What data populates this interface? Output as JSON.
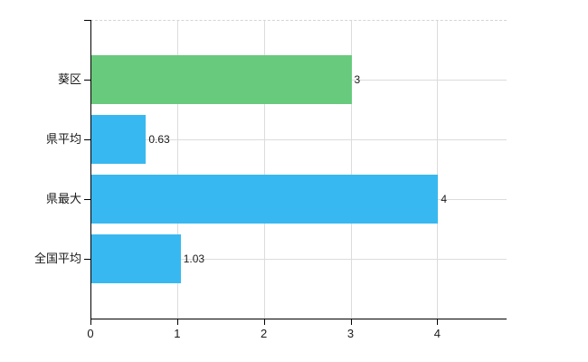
{
  "chart": {
    "background_color": "#ffffff",
    "axis_color": "#000000",
    "grid_color": "#dcdcdc",
    "top_border_style": "dashed",
    "text_color": "#1a1a1a",
    "accent_green": "#67ca7d",
    "accent_blue": "#38b8f0"
  },
  "chart_data": {
    "type": "bar",
    "orientation": "horizontal",
    "title": "",
    "xlabel": "",
    "ylabel": "",
    "categories": [
      "葵区",
      "県平均",
      "県最大",
      "全国平均"
    ],
    "values": [
      3,
      0.63,
      4,
      1.03
    ],
    "value_labels": [
      "3",
      "0.63",
      "4",
      "1.03"
    ],
    "bar_colors": [
      "#67ca7d",
      "#38b8f0",
      "#38b8f0",
      "#38b8f0"
    ],
    "x_ticks": [
      "0",
      "1",
      "2",
      "3",
      "4"
    ],
    "x_tick_values": [
      0,
      1,
      2,
      3,
      4
    ],
    "xlim": [
      0,
      4.8
    ],
    "grid": true,
    "legend": "none"
  }
}
